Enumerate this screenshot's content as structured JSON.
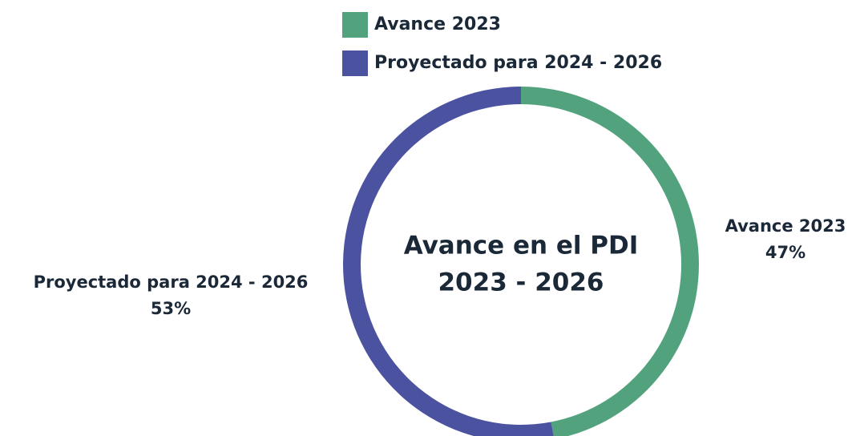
{
  "chart_data": {
    "type": "donut",
    "title": "Avance en el PDI",
    "subtitle": "2023 - 2026",
    "categories": [
      "Avance 2023",
      "Proyectado para 2024 - 2026"
    ],
    "series": [
      {
        "name": "Avance 2023",
        "color": "#52a37d"
      },
      {
        "name": "Proyectado para 2024 - 2026",
        "color": "#4b52a0"
      }
    ],
    "values": [
      47,
      53
    ],
    "value_labels": [
      "47%",
      "53%"
    ],
    "legend": "top"
  }
}
